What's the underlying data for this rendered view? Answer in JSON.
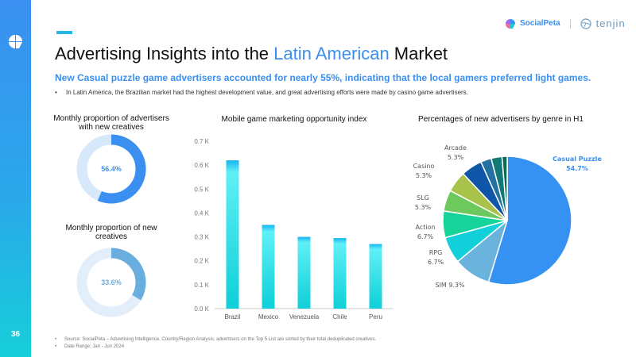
{
  "page_number": "36",
  "brand": {
    "socialpeta": "SocialPeta",
    "tenjin": "tenjin"
  },
  "title": {
    "prefix": "Advertising Insights into the ",
    "highlight": "Latin American",
    "suffix": " Market"
  },
  "subtitle": "New Casual puzzle game advertisers accounted for nearly 55%, indicating that the local gamers preferred light games.",
  "bullet": "In Latin America, the Brazilian market had the highest development value, and great advertising efforts were made by casino game advertisers.",
  "footer": [
    "Source: SocialPeta – Advertising Intelligence, Country/Region Analysis; advertisers on the Top 5 List are sorted by their total deduplicated creatives.",
    "Date Range: Jan - Jun 2024"
  ],
  "colors": {
    "accent": "#3a8ff0",
    "cyan": "#16cfd9"
  },
  "chart_data": [
    {
      "type": "pie",
      "variant": "donut",
      "title": "Monthly proportion of advertisers with new creatives",
      "value": 56.4,
      "label": "56.4%",
      "color": "#3a8ff0",
      "track": "#d8e8fb"
    },
    {
      "type": "pie",
      "variant": "donut",
      "title": "Monthly proportion of new creatives",
      "value": 33.6,
      "label": "33.6%",
      "color": "#6aaee0",
      "track": "#e2eefa"
    },
    {
      "type": "bar",
      "title": "Mobile game marketing opportunity index",
      "categories": [
        "Brazil",
        "Mexico",
        "Venezuela",
        "Chile",
        "Peru"
      ],
      "values": [
        0.62,
        0.35,
        0.3,
        0.295,
        0.27
      ],
      "yticks": [
        "0.0 K",
        "0.1 K",
        "0.2 K",
        "0.3 K",
        "0.4 K",
        "0.5 K",
        "0.6 K",
        "0.7 K"
      ],
      "ylim": [
        0,
        0.7
      ],
      "yunit": "K"
    },
    {
      "type": "pie",
      "title": "Percentages of new advertisers by genre in H1",
      "slices": [
        {
          "name": "Casual Puzzle",
          "value": 54.7,
          "label": "54.7%",
          "color": "#3591f2"
        },
        {
          "name": "SIM",
          "value": 9.3,
          "label": "9.3%",
          "color": "#6ab3dd"
        },
        {
          "name": "RPG",
          "value": 6.7,
          "label": "6.7%",
          "color": "#12d0da"
        },
        {
          "name": "Action",
          "value": 6.7,
          "label": "6.7%",
          "color": "#16d39a"
        },
        {
          "name": "SLG",
          "value": 5.3,
          "label": "5.3%",
          "color": "#6dc85e"
        },
        {
          "name": "Casino",
          "value": 5.3,
          "label": "5.3%",
          "color": "#a8c24a"
        },
        {
          "name": "Arcade",
          "value": 5.3,
          "label": "5.3%",
          "color": "#0f55a8"
        },
        {
          "name": "",
          "value": 2.7,
          "label": "",
          "color": "#2470a0"
        },
        {
          "name": "",
          "value": 2.7,
          "label": "",
          "color": "#117a78"
        },
        {
          "name": "",
          "value": 1.3,
          "label": "",
          "color": "#0e6a52"
        }
      ]
    }
  ]
}
